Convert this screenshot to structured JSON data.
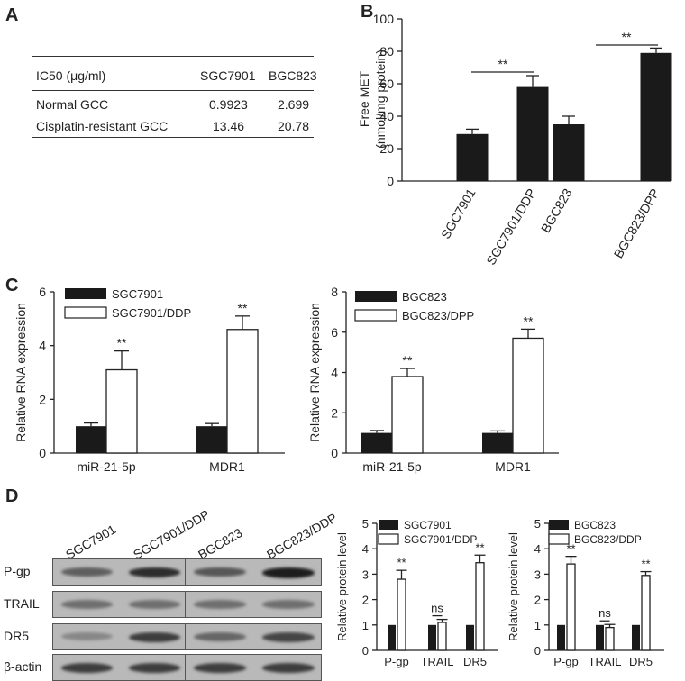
{
  "panels": {
    "a": "A",
    "b": "B",
    "c": "C",
    "d": "D"
  },
  "table": {
    "header": [
      "IC50 (μg/ml)",
      "SGC7901",
      "BGC823"
    ],
    "rows": [
      [
        "Normal GCC",
        "0.9923",
        "2.699"
      ],
      [
        "Cisplatin-resistant GCC",
        "13.46",
        "20.78"
      ]
    ]
  },
  "blots": {
    "row_labels": [
      "P-gp",
      "TRAIL",
      "DR5",
      "β-actin"
    ],
    "left_lanes": [
      "SGC7901",
      "SGC7901/DDP"
    ],
    "right_lanes": [
      "BGC823",
      "BGC823/DDP"
    ],
    "left_intensity": [
      [
        0.55,
        0.85
      ],
      [
        0.45,
        0.45
      ],
      [
        0.3,
        0.75
      ],
      [
        0.75,
        0.75
      ]
    ],
    "right_intensity": [
      [
        0.6,
        0.95
      ],
      [
        0.45,
        0.45
      ],
      [
        0.5,
        0.7
      ],
      [
        0.75,
        0.75
      ]
    ]
  },
  "chart_data": [
    {
      "id": "b",
      "type": "bar",
      "title": "",
      "ylabel": "Free MET",
      "ylabel2": "(nmol/mg protein)",
      "xlabel": "",
      "ylim": [
        0,
        100
      ],
      "yticks": [
        "0",
        "20",
        "40",
        "60",
        "80",
        "100"
      ],
      "categories": [
        "SGC7901",
        "SGC7901/DDP",
        "BGC823",
        "BGC823/DPP"
      ],
      "values": [
        29,
        58,
        35,
        79
      ],
      "errors": [
        3,
        7,
        5,
        3
      ],
      "annotations": [
        {
          "label": "**",
          "between": [
            0,
            1
          ]
        },
        {
          "label": "**",
          "between": [
            2,
            3
          ]
        }
      ]
    },
    {
      "id": "c1",
      "type": "bar",
      "ylabel": "Relative RNA expression",
      "ylim": [
        0,
        6
      ],
      "yticks": [
        "0",
        "2",
        "4",
        "6"
      ],
      "categories": [
        "miR-21-5p",
        "MDR1"
      ],
      "series": [
        {
          "name": "SGC7901",
          "values": [
            1.0,
            1.0
          ],
          "errors": [
            0.12,
            0.1
          ]
        },
        {
          "name": "SGC7901/DDP",
          "values": [
            3.1,
            4.6
          ],
          "errors": [
            0.7,
            0.5
          ]
        }
      ],
      "sig": [
        "**",
        "**"
      ]
    },
    {
      "id": "c2",
      "type": "bar",
      "ylabel": "Relative RNA expression",
      "ylim": [
        0,
        8
      ],
      "yticks": [
        "0",
        "2",
        "4",
        "6",
        "8"
      ],
      "categories": [
        "miR-21-5p",
        "MDR1"
      ],
      "series": [
        {
          "name": "BGC823",
          "values": [
            1.0,
            1.0
          ],
          "errors": [
            0.12,
            0.1
          ]
        },
        {
          "name": "BGC823/DPP",
          "values": [
            3.8,
            5.7
          ],
          "errors": [
            0.4,
            0.45
          ]
        }
      ],
      "sig": [
        "**",
        "**"
      ]
    },
    {
      "id": "d1",
      "type": "bar",
      "ylabel": "Relative protein level",
      "ylim": [
        0,
        5
      ],
      "yticks": [
        "0",
        "1",
        "2",
        "3",
        "4",
        "5"
      ],
      "categories": [
        "P-gp",
        "TRAIL",
        "DR5"
      ],
      "series": [
        {
          "name": "SGC7901",
          "values": [
            1,
            1,
            1
          ],
          "errors": [
            0,
            0,
            0
          ]
        },
        {
          "name": "SGC7901/DDP",
          "values": [
            2.8,
            1.1,
            3.45
          ],
          "errors": [
            0.35,
            0.12,
            0.3
          ]
        }
      ],
      "sig": [
        "**",
        "ns",
        "**"
      ]
    },
    {
      "id": "d2",
      "type": "bar",
      "ylabel": "Relative protein level",
      "ylim": [
        0,
        5
      ],
      "yticks": [
        "0",
        "1",
        "2",
        "3",
        "4",
        "5"
      ],
      "categories": [
        "P-gp",
        "TRAIL",
        "DR5"
      ],
      "series": [
        {
          "name": "BGC823",
          "values": [
            1,
            1,
            1
          ],
          "errors": [
            0,
            0,
            0
          ]
        },
        {
          "name": "BGC823/DDP",
          "values": [
            3.4,
            0.9,
            2.95
          ],
          "errors": [
            0.3,
            0.12,
            0.15
          ]
        }
      ],
      "sig": [
        "**",
        "ns",
        "**"
      ]
    }
  ]
}
